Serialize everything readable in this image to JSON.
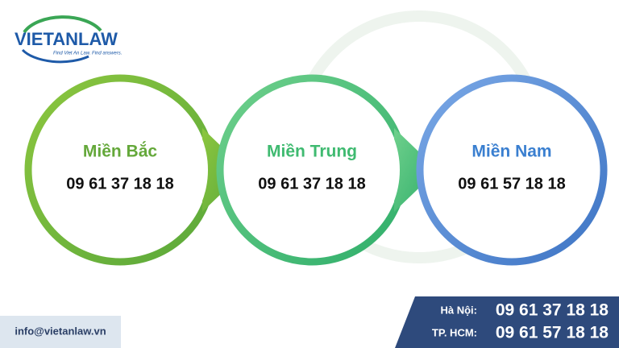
{
  "logo": {
    "name": "VIETANLAW",
    "tagline": "Find Viet An Law. Find answers."
  },
  "nodes": [
    {
      "label": "Miền Bắc",
      "phone": "09 61 37 18 18"
    },
    {
      "label": "Miền Trung",
      "phone": "09 61 37 18 18"
    },
    {
      "label": "Miền Nam",
      "phone": "09 61 57 18 18"
    }
  ],
  "footer": {
    "email": "info@vietanlaw.vn",
    "contacts": [
      {
        "label": "Hà Nội:",
        "phone": "09 61 37 18 18"
      },
      {
        "label": "TP. HCM:",
        "phone": "09 61 57 18 18"
      }
    ]
  }
}
